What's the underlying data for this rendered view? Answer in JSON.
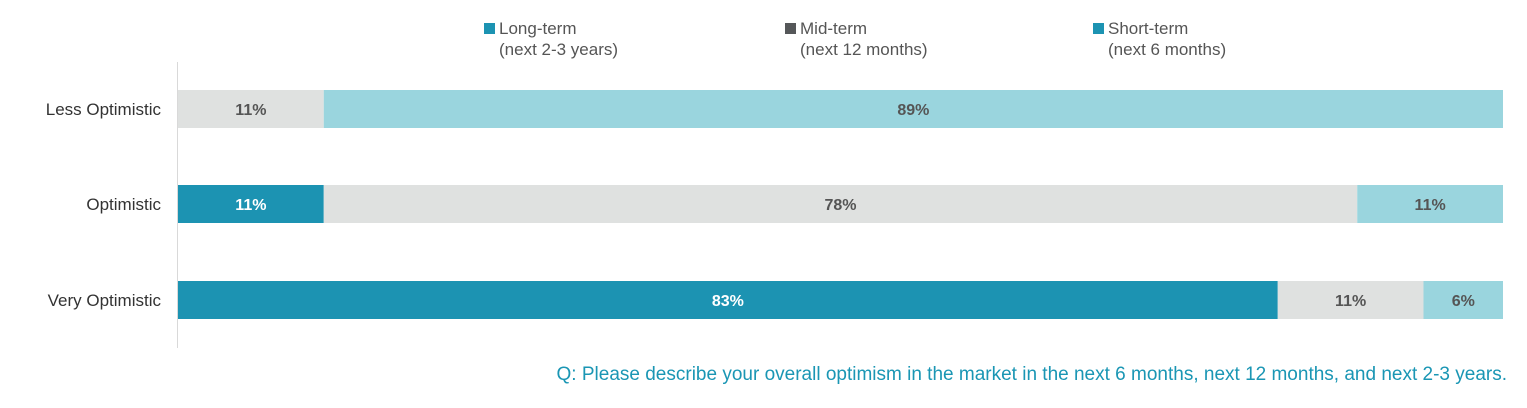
{
  "colors": {
    "long_term": "#1c93b2",
    "mid_term": "#dfe1e0",
    "short_term": "#9ad5de",
    "mid_term_legend": "#555759",
    "axis": "#d9d9d9",
    "category_text": "#333333",
    "value_text_dark": "#555555",
    "value_text_light": "#ffffff",
    "question_text": "#1a96b4"
  },
  "legend": {
    "items": [
      {
        "name": "Long-term",
        "sub": "(next 2-3 years)",
        "swatch_color": "#1c93b2"
      },
      {
        "name": "Mid-term",
        "sub": "(next 12 months)",
        "swatch_color": "#555759"
      },
      {
        "name": "Short-term",
        "sub": "(next 6 months)",
        "swatch_color": "#1c93b2"
      }
    ]
  },
  "question": "Q: Please describe your overall optimism in the market in the next 6 months, next 12 months, and next 2-3 years.",
  "chart_data": {
    "type": "bar",
    "orientation": "horizontal",
    "stacked": true,
    "percent_stacked": true,
    "categories": [
      "Less Optimistic",
      "Optimistic",
      "Very Optimistic"
    ],
    "series": [
      {
        "name": "Long-term (next 2-3 years)",
        "values": [
          0,
          11,
          83
        ],
        "labels": [
          "",
          "11%",
          "83%"
        ]
      },
      {
        "name": "Mid-term (next 12 months)",
        "values": [
          11,
          78,
          11
        ],
        "labels": [
          "11%",
          "78%",
          "11%"
        ]
      },
      {
        "name": "Short-term (next 6 months)",
        "values": [
          89,
          11,
          6
        ],
        "labels": [
          "89%",
          "11%",
          "6%"
        ]
      }
    ],
    "xlim": [
      0,
      100
    ],
    "grid": false,
    "legend_position": "top"
  }
}
